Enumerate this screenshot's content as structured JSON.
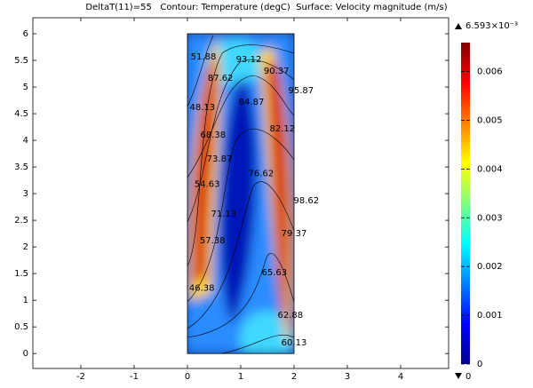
{
  "chart_data": {
    "type": "surface-contour",
    "title": "DeltaT(11)=55   Contour: Temperature (degC)  Surface: Velocity magnitude (m/s)",
    "xlim": [
      -2.9,
      4.9
    ],
    "ylim": [
      -0.28,
      6.3
    ],
    "xticks": [
      -2,
      -1,
      0,
      1,
      2,
      3,
      4
    ],
    "yticks": [
      0,
      0.5,
      1,
      1.5,
      2,
      2.5,
      3,
      3.5,
      4,
      4.5,
      5,
      5.5,
      6
    ],
    "surface": {
      "xlim": [
        0,
        2
      ],
      "ylim": [
        0,
        6
      ]
    },
    "contour_labels": [
      {
        "x": 0.3,
        "y": 5.57,
        "value": 51.88
      },
      {
        "x": 1.15,
        "y": 5.52,
        "value": 93.12
      },
      {
        "x": 1.67,
        "y": 5.3,
        "value": 90.37
      },
      {
        "x": 0.62,
        "y": 5.17,
        "value": 87.62
      },
      {
        "x": 2.13,
        "y": 4.93,
        "value": 95.87
      },
      {
        "x": 1.2,
        "y": 4.72,
        "value": 84.87
      },
      {
        "x": 0.28,
        "y": 4.62,
        "value": 48.13
      },
      {
        "x": 1.78,
        "y": 4.22,
        "value": 82.12
      },
      {
        "x": 0.48,
        "y": 4.1,
        "value": 68.38
      },
      {
        "x": 0.6,
        "y": 3.65,
        "value": 73.87
      },
      {
        "x": 1.38,
        "y": 3.38,
        "value": 76.62
      },
      {
        "x": 0.37,
        "y": 3.18,
        "value": 54.63
      },
      {
        "x": 2.23,
        "y": 2.87,
        "value": 98.62
      },
      {
        "x": 0.68,
        "y": 2.62,
        "value": 71.13
      },
      {
        "x": 2.0,
        "y": 2.25,
        "value": 79.37
      },
      {
        "x": 0.47,
        "y": 2.12,
        "value": 57.38
      },
      {
        "x": 1.63,
        "y": 1.52,
        "value": 65.63
      },
      {
        "x": 0.27,
        "y": 1.23,
        "value": 46.38
      },
      {
        "x": 1.93,
        "y": 0.72,
        "value": 62.88
      },
      {
        "x": 2.0,
        "y": 0.2,
        "value": 60.13
      }
    ],
    "colorbar": {
      "clim": [
        0,
        0.006593
      ],
      "ticks": [
        0,
        0.001,
        0.002,
        0.003,
        0.004,
        0.005,
        0.006
      ],
      "max_label": {
        "value": 0.006593,
        "label": "6.593×10⁻³"
      }
    }
  }
}
